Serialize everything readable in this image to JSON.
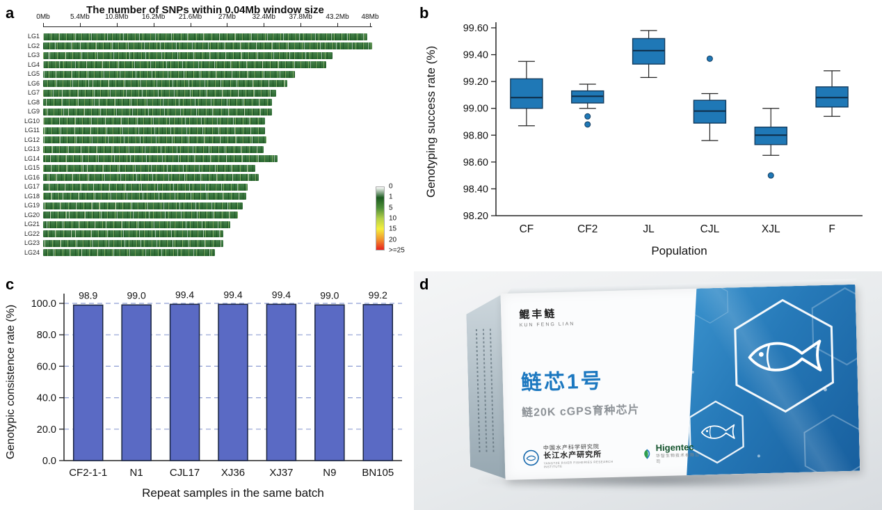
{
  "panels": {
    "a": {
      "label": "a"
    },
    "b": {
      "label": "b"
    },
    "c": {
      "label": "c"
    },
    "d": {
      "label": "d",
      "box": {
        "brand": "鲲丰鲢",
        "brand_sub": "KUN FENG LIAN",
        "product_name": "鲢芯1号",
        "product_sub": "鲢20K cGPS育种芯片",
        "org_cn_1": "中国水产科学研究院",
        "org_cn_2": "长江水产研究所",
        "org_en": "YANGTZE RIVER FISHERIES RESEARCH INSTITUTE",
        "partner": "Higentec",
        "partner_sub": "华智生物技术有限公司"
      }
    }
  },
  "chart_data": [
    {
      "panel": "a",
      "type": "heatmap",
      "title": "The number of SNPs within 0.04Mb window size",
      "x_ticks": [
        "0Mb",
        "5.4Mb",
        "10.8Mb",
        "16.2Mb",
        "21.6Mb",
        "27Mb",
        "32.4Mb",
        "37.8Mb",
        "43.2Mb",
        "48Mb"
      ],
      "x_max_mb": 48,
      "rows": [
        "LG1",
        "LG2",
        "LG3",
        "LG4",
        "LG5",
        "LG6",
        "LG7",
        "LG8",
        "LG9",
        "LG10",
        "LG11",
        "LG12",
        "LG13",
        "LG14",
        "LG15",
        "LG16",
        "LG17",
        "LG18",
        "LG19",
        "LG20",
        "LG21",
        "LG22",
        "LG23",
        "LG24"
      ],
      "row_lengths_mb": [
        47.6,
        48.3,
        42.5,
        41.6,
        37.0,
        35.8,
        34.2,
        33.6,
        33.6,
        32.6,
        32.6,
        32.8,
        32.4,
        34.4,
        31.1,
        31.7,
        30.0,
        29.8,
        29.3,
        28.6,
        27.5,
        26.4,
        26.4,
        25.2
      ],
      "bar_color": "#2d7033",
      "legend": {
        "labels": [
          "0",
          "1",
          "5",
          "10",
          "15",
          "20",
          ">=25"
        ],
        "colors": [
          "#ffffff",
          "#1c5b20",
          "#4e8f38",
          "#b4d048",
          "#f5ef3c",
          "#f2952e",
          "#e8211d"
        ]
      }
    },
    {
      "panel": "b",
      "type": "boxplot",
      "xlabel": "Population",
      "ylabel": "Genotyping success rate (%)",
      "categories": [
        "CF",
        "CF2",
        "JL",
        "CJL",
        "XJL",
        "F"
      ],
      "ylim": [
        98.2,
        99.6
      ],
      "y_ticks": [
        "98.20",
        "98.40",
        "98.60",
        "98.80",
        "99.00",
        "99.20",
        "99.40",
        "99.60"
      ],
      "box_color": "#1f78b6",
      "boxes": [
        {
          "low": 98.87,
          "q1": 99.0,
          "median": 99.08,
          "q3": 99.22,
          "high": 99.35,
          "outliers": []
        },
        {
          "low": 99.0,
          "q1": 99.04,
          "median": 99.09,
          "q3": 99.13,
          "high": 99.18,
          "outliers": [
            98.94,
            98.88
          ]
        },
        {
          "low": 99.23,
          "q1": 99.33,
          "median": 99.43,
          "q3": 99.52,
          "high": 99.58,
          "outliers": []
        },
        {
          "low": 98.76,
          "q1": 98.89,
          "median": 98.98,
          "q3": 99.06,
          "high": 99.11,
          "outliers": [
            99.37
          ]
        },
        {
          "low": 98.65,
          "q1": 98.73,
          "median": 98.8,
          "q3": 98.86,
          "high": 99.0,
          "outliers": [
            98.5
          ]
        },
        {
          "low": 98.94,
          "q1": 99.01,
          "median": 99.08,
          "q3": 99.16,
          "high": 99.28,
          "outliers": []
        }
      ]
    },
    {
      "panel": "c",
      "type": "bar",
      "xlabel": "Repeat samples in the same batch",
      "ylabel": "Genotypic consistence rate (%)",
      "categories": [
        "CF2-1-1",
        "N1",
        "CJL17",
        "XJ36",
        "XJ37",
        "N9",
        "BN105"
      ],
      "values": [
        98.9,
        99.0,
        99.4,
        99.4,
        99.4,
        99.0,
        99.2
      ],
      "ylim": [
        0,
        100
      ],
      "y_ticks": [
        "0.0",
        "20.0",
        "40.0",
        "60.0",
        "80.0",
        "100.0"
      ],
      "bar_color": "#5a6ac4",
      "grid": "dashed",
      "grid_color": "#8d9dd4"
    }
  ]
}
